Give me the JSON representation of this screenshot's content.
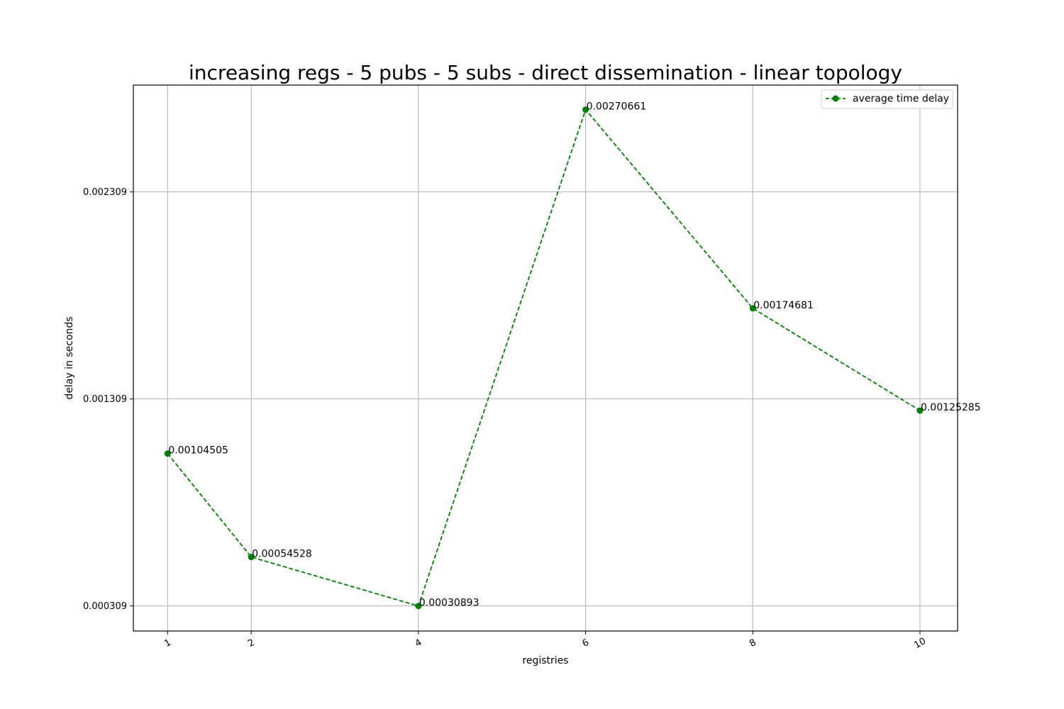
{
  "chart_data": {
    "type": "line",
    "title": "increasing regs - 5 pubs - 5 subs - direct dissemination - linear topology",
    "xlabel": "registries",
    "ylabel": "delay in seconds",
    "x": [
      1,
      2,
      4,
      6,
      8,
      10
    ],
    "x_tick_labels": [
      "1",
      "2",
      "4",
      "6",
      "8",
      "10"
    ],
    "y_ticks": [
      0.000309,
      0.001309,
      0.002309
    ],
    "y_tick_labels": [
      "0.000309",
      "0.001309",
      "0.002309"
    ],
    "xlim": [
      0.59,
      10.45
    ],
    "ylim": [
      0.000188,
      0.002825
    ],
    "grid": true,
    "legend_position": "top-right",
    "series": [
      {
        "name": "average time delay",
        "color": "#008000",
        "line_style": "dashed",
        "marker": "circle",
        "values": [
          0.00104505,
          0.00054528,
          0.00030893,
          0.00270661,
          0.00174681,
          0.00125285
        ],
        "point_labels": [
          "0.00104505",
          "0.00054528",
          "0.00030893",
          "0.00270661",
          "0.00174681",
          "0.00125285"
        ]
      }
    ]
  }
}
